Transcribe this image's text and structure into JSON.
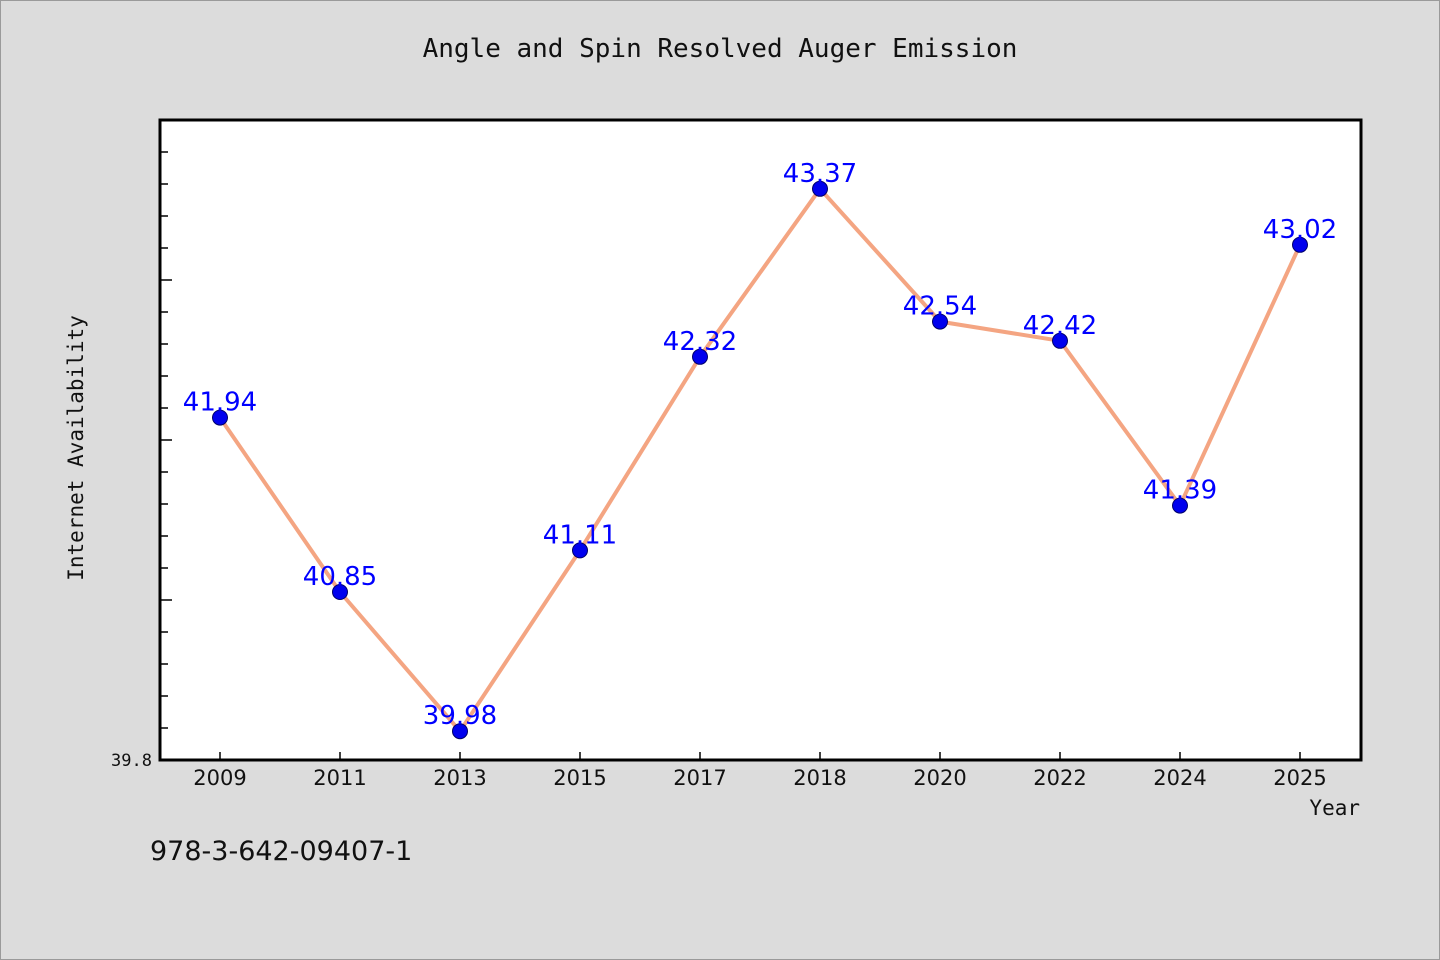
{
  "chart_data": {
    "type": "line",
    "title": "Angle and Spin Resolved Auger Emission",
    "xlabel": "Year",
    "ylabel": "Internet Availability",
    "categories": [
      "2009",
      "2011",
      "2013",
      "2015",
      "2017",
      "2018",
      "2020",
      "2022",
      "2024",
      "2025"
    ],
    "series": [
      {
        "values": [
          41.94,
          40.85,
          39.98,
          41.11,
          42.32,
          43.37,
          42.54,
          42.42,
          41.39,
          43.02
        ],
        "labels": [
          "41.94",
          "40.85",
          "39.98",
          "41.11",
          "42.32",
          "43.37",
          "42.54",
          "42.42",
          "41.39",
          "43.02"
        ],
        "line_color": "#f4a582",
        "marker_color": "#0000ee",
        "label_color": "#0000ff"
      }
    ],
    "ylim": [
      39.8,
      43.8
    ],
    "y_tick_labels": [
      "39.8"
    ],
    "grid": false,
    "plot_background": "#ffffff",
    "page_background": "#dcdcdc"
  },
  "footnote": "978-3-642-09407-1"
}
